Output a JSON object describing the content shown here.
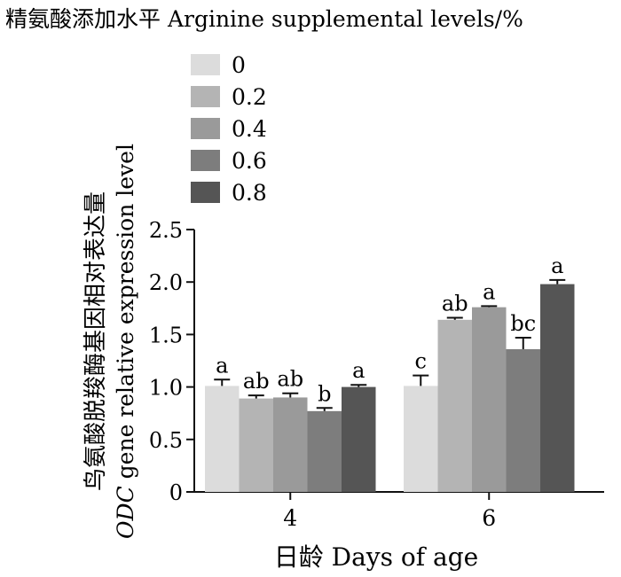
{
  "chart_data": {
    "type": "bar",
    "legend_title": "精氨酸添加水平 Arginine supplemental levels/%",
    "xlabel": "日龄 Days of age",
    "ylabel_cn": "鸟氨酸脱羧酶基因相对表达量",
    "ylabel_en_italic": "ODC",
    "ylabel_en_rest": " gene relative expression level",
    "categories": [
      "4",
      "6"
    ],
    "ylim": [
      0,
      2.5
    ],
    "yticks": [
      "0",
      "0.5",
      "1.0",
      "1.5",
      "2.0",
      "2.5"
    ],
    "legend_position": "top-left",
    "grid": false,
    "series": [
      {
        "name": "0",
        "color": "#dcdcdc",
        "values": [
          1.01,
          1.01
        ],
        "errors": [
          0.06,
          0.1
        ],
        "labels": [
          "a",
          "c"
        ]
      },
      {
        "name": "0.2",
        "color": "#b4b4b4",
        "values": [
          0.89,
          1.64
        ],
        "errors": [
          0.03,
          0.02
        ],
        "labels": [
          "ab",
          "ab"
        ]
      },
      {
        "name": "0.4",
        "color": "#9a9a9a",
        "values": [
          0.9,
          1.76
        ],
        "errors": [
          0.04,
          0.01
        ],
        "labels": [
          "ab",
          "a"
        ]
      },
      {
        "name": "0.6",
        "color": "#7d7d7d",
        "values": [
          0.77,
          1.36
        ],
        "errors": [
          0.03,
          0.11
        ],
        "labels": [
          "b",
          "bc"
        ]
      },
      {
        "name": "0.8",
        "color": "#555555",
        "values": [
          1.0,
          1.98
        ],
        "errors": [
          0.02,
          0.04
        ],
        "labels": [
          "a",
          "a"
        ]
      }
    ]
  }
}
